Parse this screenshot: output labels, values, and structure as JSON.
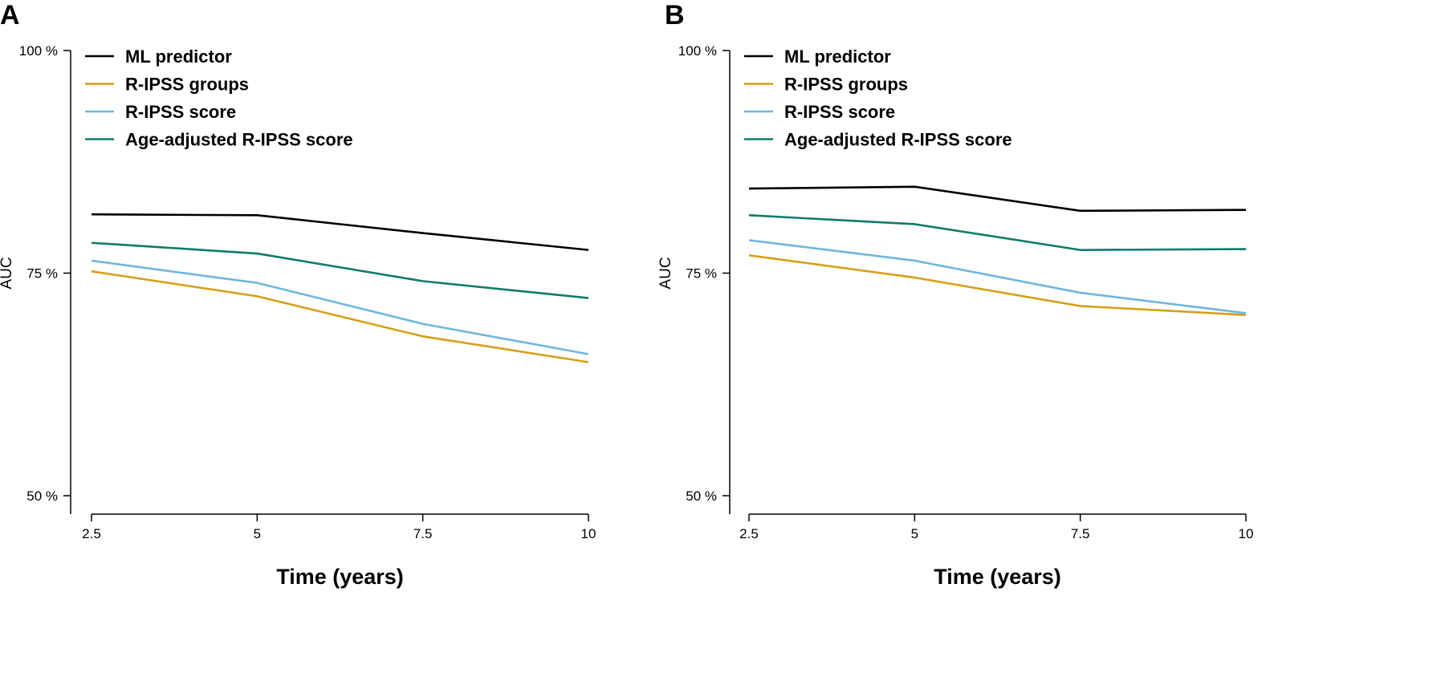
{
  "chart_data": [
    {
      "type": "line",
      "panel_label": "A",
      "xlabel": "Time (years)",
      "ylabel": "AUC",
      "x": [
        2.5,
        5,
        7.5,
        10
      ],
      "x_tick_labels": [
        "2.5",
        "5",
        "7.5",
        "10"
      ],
      "y_tick_values": [
        50,
        75,
        100
      ],
      "y_tick_labels": [
        "50 %",
        "75 %",
        "100 %"
      ],
      "xlim": [
        2.5,
        10
      ],
      "ylim": [
        48,
        100
      ],
      "grid": false,
      "legend_position": "top-left",
      "series": [
        {
          "name": "ML predictor",
          "color": "#000000",
          "values": [
            81.6,
            81.5,
            79.5,
            77.6
          ]
        },
        {
          "name": "R-IPSS groups",
          "color": "#D4A017",
          "values": [
            75.2,
            72.4,
            67.9,
            65.0
          ]
        },
        {
          "name": "R-IPSS score",
          "color": "#6FB7DC",
          "values": [
            76.4,
            73.9,
            69.3,
            65.9
          ]
        },
        {
          "name": "Age-adjusted R-IPSS score",
          "color": "#0E7D66",
          "values": [
            78.4,
            77.2,
            74.1,
            72.2
          ]
        }
      ]
    },
    {
      "type": "line",
      "panel_label": "B",
      "xlabel": "Time (years)",
      "ylabel": "AUC",
      "x": [
        2.5,
        5,
        7.5,
        10
      ],
      "x_tick_labels": [
        "2.5",
        "5",
        "7.5",
        "10"
      ],
      "y_tick_values": [
        50,
        75,
        100
      ],
      "y_tick_labels": [
        "50 %",
        "75 %",
        "100 %"
      ],
      "xlim": [
        2.5,
        10
      ],
      "ylim": [
        48,
        100
      ],
      "grid": false,
      "legend_position": "top-left",
      "series": [
        {
          "name": "ML predictor",
          "color": "#000000",
          "values": [
            84.5,
            84.7,
            82.0,
            82.1
          ]
        },
        {
          "name": "R-IPSS groups",
          "color": "#D4A017",
          "values": [
            77.0,
            74.5,
            71.3,
            70.3
          ]
        },
        {
          "name": "R-IPSS score",
          "color": "#6FB7DC",
          "values": [
            78.7,
            76.4,
            72.8,
            70.5
          ]
        },
        {
          "name": "Age-adjusted R-IPSS score",
          "color": "#0E7D66",
          "values": [
            81.5,
            80.5,
            77.6,
            77.7
          ]
        }
      ]
    }
  ]
}
